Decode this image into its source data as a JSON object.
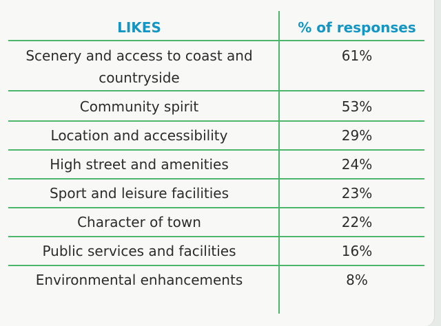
{
  "table": {
    "header": {
      "likes": "LIKES",
      "percent": "% of responses"
    },
    "rows": [
      {
        "label": "Scenery and access to coast and countryside",
        "label_lines": [
          "Scenery and access to coast and",
          "countryside"
        ],
        "percent": "61%"
      },
      {
        "label": "Community spirit",
        "percent": "53%"
      },
      {
        "label": "Location and accessibility",
        "percent": "29%"
      },
      {
        "label": "High street and amenities",
        "percent": "24%"
      },
      {
        "label": "Sport and leisure facilities",
        "percent": "23%"
      },
      {
        "label": "Character of town",
        "percent": "22%"
      },
      {
        "label": "Public services and facilities",
        "percent": "16%"
      },
      {
        "label": "Environmental enhancements",
        "percent": "8%"
      }
    ]
  },
  "colors": {
    "header_text": "#1396c4",
    "rule_lines": "#4bb56a",
    "body_text": "#2b2b2b",
    "background": "#f8f9f7"
  }
}
